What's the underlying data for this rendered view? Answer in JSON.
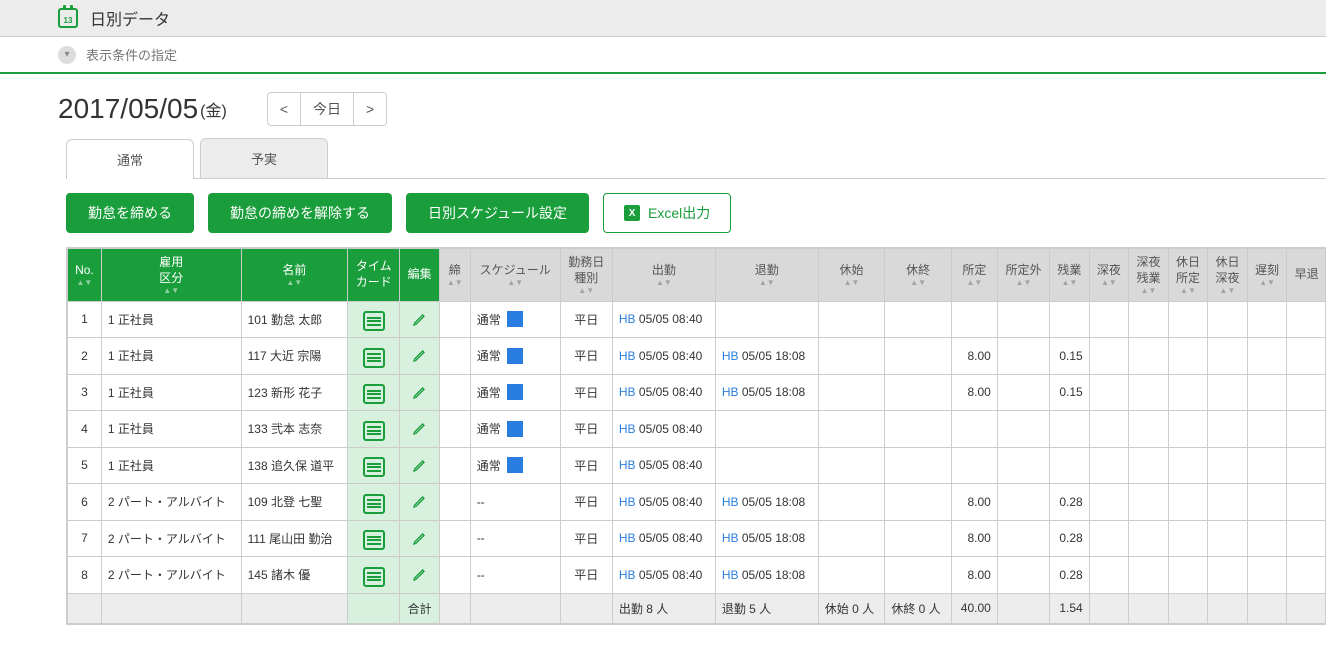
{
  "header": {
    "title": "日別データ",
    "calendar_day": "13"
  },
  "filter": {
    "label": "表示条件の指定"
  },
  "date": {
    "value": "2017/05/05",
    "day": "(金)",
    "today_label": "今日"
  },
  "tabs": {
    "normal": "通常",
    "plan": "予実"
  },
  "actions": {
    "close": "勤怠を締める",
    "reopen": "勤怠の締めを解除する",
    "schedule": "日別スケジュール設定",
    "excel": "Excel出力"
  },
  "columns": {
    "no": "No.",
    "emp_type": "雇用\n区分",
    "name": "名前",
    "timecard": "タイム\nカード",
    "edit": "編集",
    "closed": "締",
    "schedule": "スケジュール",
    "day_type": "勤務日\n種別",
    "clock_in": "出勤",
    "clock_out": "退勤",
    "break_start": "休始",
    "break_end": "休終",
    "scheduled": "所定",
    "over_scheduled": "所定外",
    "overtime": "残業",
    "late_night": "深夜",
    "late_night_ot": "深夜\n残業",
    "holiday_sched": "休日\n所定",
    "holiday_late": "休日\n深夜",
    "lateness": "遅刻",
    "early": "早退"
  },
  "rows": [
    {
      "no": "1",
      "emp_type": "1 正社員",
      "name": "101 勤怠 太郎",
      "sched": "通常",
      "sched_box": true,
      "day_type": "平日",
      "in_prefix": "HB",
      "in": "05/05 08:40",
      "out_prefix": "",
      "out": "",
      "scheduled": "",
      "overtime": ""
    },
    {
      "no": "2",
      "emp_type": "1 正社員",
      "name": "117 大近 宗陽",
      "sched": "通常",
      "sched_box": true,
      "day_type": "平日",
      "in_prefix": "HB",
      "in": "05/05 08:40",
      "out_prefix": "HB",
      "out": "05/05 18:08",
      "scheduled": "8.00",
      "overtime": "0.15"
    },
    {
      "no": "3",
      "emp_type": "1 正社員",
      "name": "123 新形 花子",
      "sched": "通常",
      "sched_box": true,
      "day_type": "平日",
      "in_prefix": "HB",
      "in": "05/05 08:40",
      "out_prefix": "HB",
      "out": "05/05 18:08",
      "scheduled": "8.00",
      "overtime": "0.15"
    },
    {
      "no": "4",
      "emp_type": "1 正社員",
      "name": "133 弐本 志奈",
      "sched": "通常",
      "sched_box": true,
      "day_type": "平日",
      "in_prefix": "HB",
      "in": "05/05 08:40",
      "out_prefix": "",
      "out": "",
      "scheduled": "",
      "overtime": ""
    },
    {
      "no": "5",
      "emp_type": "1 正社員",
      "name": "138 追久保 道平",
      "sched": "通常",
      "sched_box": true,
      "day_type": "平日",
      "in_prefix": "HB",
      "in": "05/05 08:40",
      "out_prefix": "",
      "out": "",
      "scheduled": "",
      "overtime": ""
    },
    {
      "no": "6",
      "emp_type": "2 パート・アルバイト",
      "name": "109 北登 七聖",
      "sched": "--",
      "sched_box": false,
      "day_type": "平日",
      "in_prefix": "HB",
      "in": "05/05 08:40",
      "out_prefix": "HB",
      "out": "05/05 18:08",
      "scheduled": "8.00",
      "overtime": "0.28"
    },
    {
      "no": "7",
      "emp_type": "2 パート・アルバイト",
      "name": "111 尾山田 勤治",
      "sched": "--",
      "sched_box": false,
      "day_type": "平日",
      "in_prefix": "HB",
      "in": "05/05 08:40",
      "out_prefix": "HB",
      "out": "05/05 18:08",
      "scheduled": "8.00",
      "overtime": "0.28"
    },
    {
      "no": "8",
      "emp_type": "2 パート・アルバイト",
      "name": "145 諸木 優",
      "sched": "--",
      "sched_box": false,
      "day_type": "平日",
      "in_prefix": "HB",
      "in": "05/05 08:40",
      "out_prefix": "HB",
      "out": "05/05 18:08",
      "scheduled": "8.00",
      "overtime": "0.28"
    }
  ],
  "totals": {
    "label": "合計",
    "in": "出勤 8 人",
    "out": "退勤 5 人",
    "break_start": "休始 0 人",
    "break_end": "休終 0 人",
    "scheduled": "40.00",
    "overtime": "1.54"
  },
  "style": {
    "accent": "#1a9e3c",
    "header_gray": "#d9d9d9",
    "blue": "#2a7de0",
    "timecard_bg": "#d8f1df"
  }
}
